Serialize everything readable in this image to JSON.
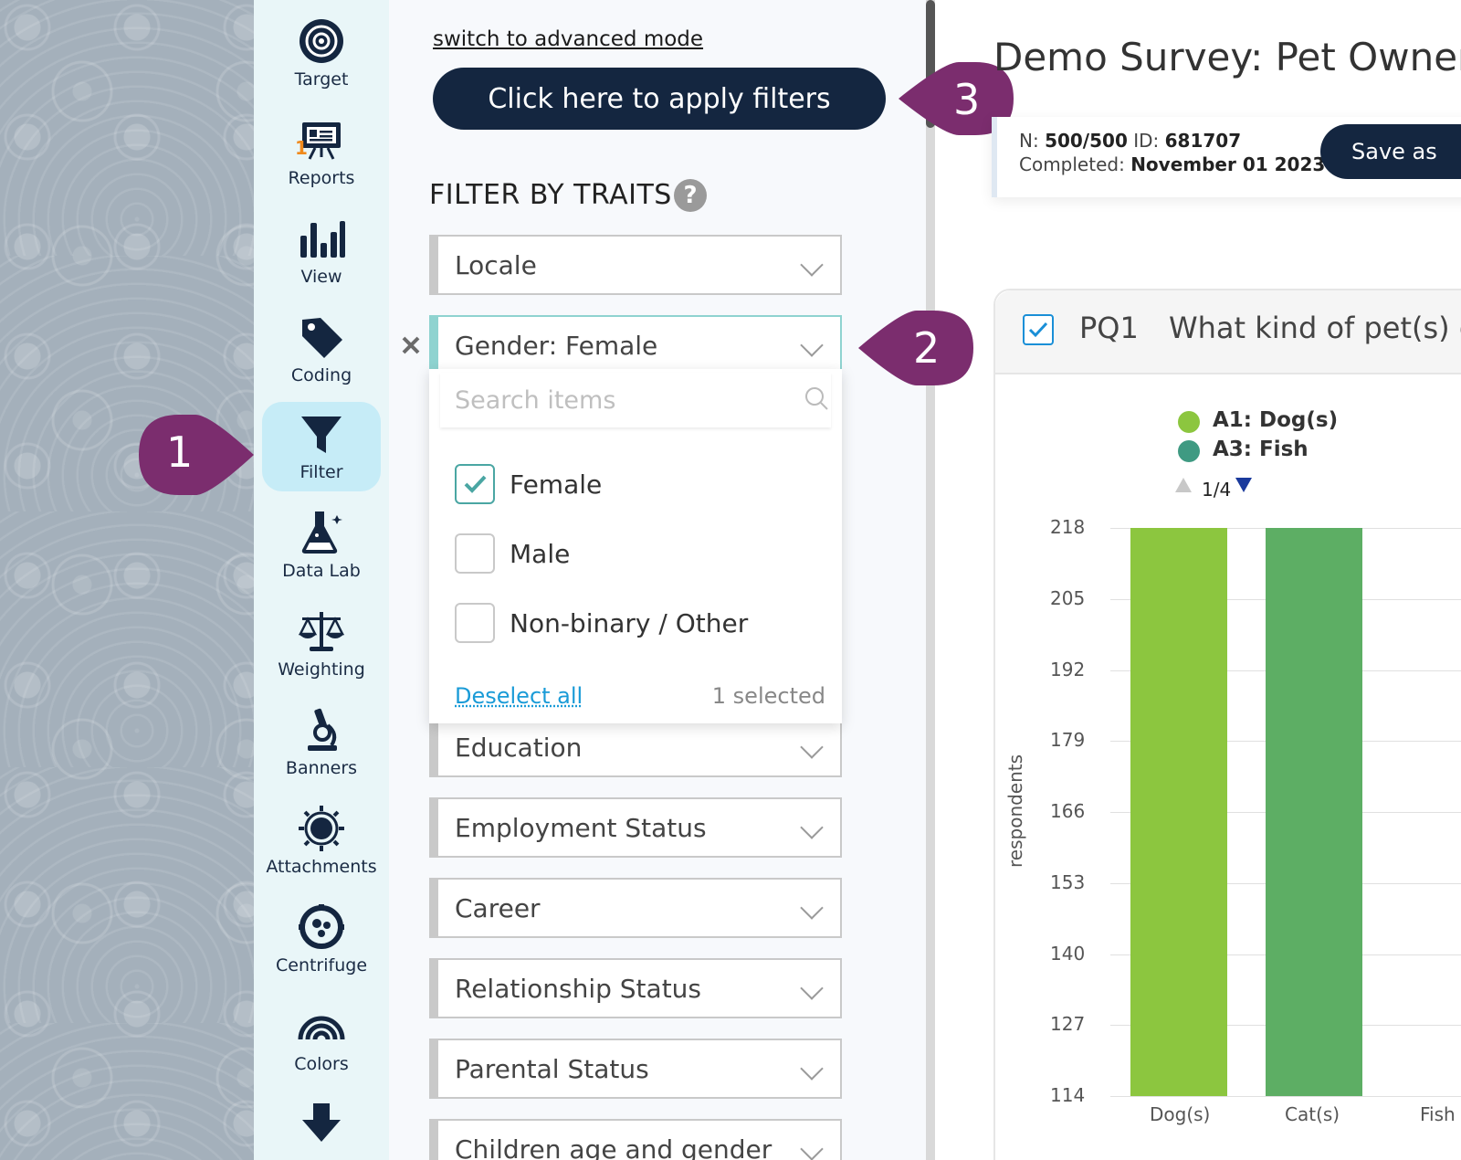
{
  "sidebar": {
    "items": [
      {
        "label": "Target",
        "icon": "target-icon"
      },
      {
        "label": "Reports",
        "icon": "presentation-icon",
        "badge": "1"
      },
      {
        "label": "View",
        "icon": "bar-chart-icon"
      },
      {
        "label": "Coding",
        "icon": "tag-icon"
      },
      {
        "label": "Filter",
        "icon": "funnel-icon",
        "active": true
      },
      {
        "label": "Data Lab",
        "icon": "flask-icon"
      },
      {
        "label": "Weighting",
        "icon": "scale-icon"
      },
      {
        "label": "Banners",
        "icon": "microscope-icon"
      },
      {
        "label": "Attachments",
        "icon": "sun-icon"
      },
      {
        "label": "Centrifuge",
        "icon": "centrifuge-icon"
      },
      {
        "label": "Colors",
        "icon": "rainbow-icon"
      },
      {
        "label": "",
        "icon": "download-arrow-icon"
      }
    ]
  },
  "filter_panel": {
    "advanced_link": "switch to advanced mode",
    "apply_button": "Click here to apply filters",
    "section_title": "FILTER BY TRAITS",
    "help": "?",
    "dropdowns": [
      {
        "label": "Locale"
      },
      {
        "label": "Gender: Female",
        "active": true
      },
      {
        "label": "Education"
      },
      {
        "label": "Employment Status"
      },
      {
        "label": "Career"
      },
      {
        "label": "Relationship Status"
      },
      {
        "label": "Parental Status"
      },
      {
        "label": "Children age and gender"
      }
    ],
    "menu": {
      "search_placeholder": "Search items",
      "options": [
        {
          "label": "Female",
          "checked": true
        },
        {
          "label": "Male",
          "checked": false
        },
        {
          "label": "Non-binary / Other",
          "checked": false
        }
      ],
      "deselect_all": "Deselect all",
      "selected_count": "1 selected"
    }
  },
  "callouts": [
    "1",
    "2",
    "3"
  ],
  "header": {
    "title": "Demo Survey: Pet Owners |",
    "n_label": "N:",
    "n_value": "500/500",
    "id_label": "ID:",
    "id_value": "681707",
    "completed_label": "Completed:",
    "completed_value": "November 01 2023",
    "save_button": "Save as"
  },
  "question": {
    "id": "PQ1",
    "text": "What kind of pet(s) do"
  },
  "chart_data": {
    "type": "bar",
    "legend": [
      {
        "name": "A1: Dog(s)",
        "color": "#8cc63f"
      },
      {
        "name": "A3: Fish",
        "color": "#3f9a82"
      }
    ],
    "pager": "1/4",
    "ylabel": "respondents",
    "yticks": [
      218,
      205,
      192,
      179,
      166,
      153,
      140,
      127,
      114
    ],
    "ylim": [
      114,
      218
    ],
    "categories": [
      "Dog(s)",
      "Cat(s)",
      "Fish"
    ],
    "bars": [
      {
        "category": "Dog(s)",
        "value": 218,
        "color": "#8cc63f"
      },
      {
        "category": "Cat(s)",
        "value": 218,
        "color": "#5dae64"
      }
    ]
  },
  "colors": {
    "navy": "#142640",
    "callout": "#7b2d6e",
    "accent_teal": "#4aa6a3",
    "link_blue": "#1a9bd7"
  }
}
